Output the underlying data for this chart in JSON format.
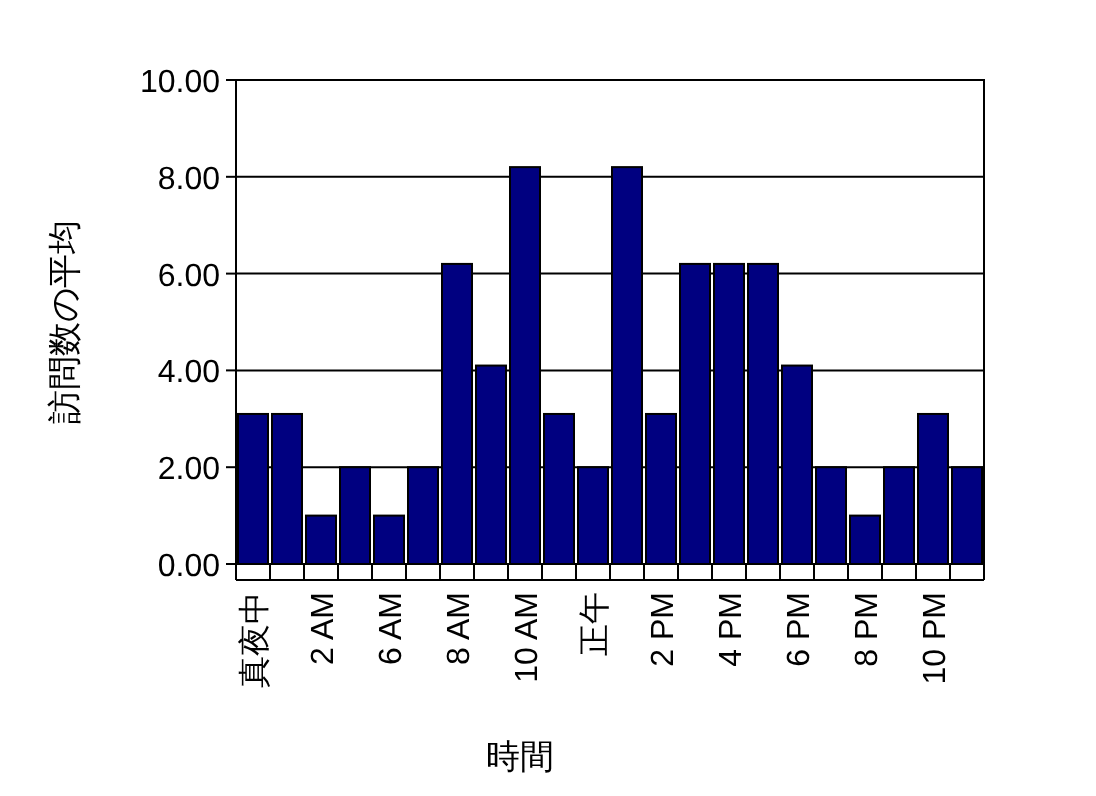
{
  "chart_data": {
    "type": "bar",
    "xlabel": "時間",
    "ylabel": "訪問数の平均",
    "categories": [
      "真夜中",
      null,
      "2 AM",
      null,
      "6 AM",
      null,
      "8 AM",
      null,
      "10 AM",
      null,
      "正午",
      null,
      "2 PM",
      null,
      "4 PM",
      null,
      "6 PM",
      null,
      "8 PM",
      null,
      "10 PM",
      null
    ],
    "values": [
      3.1,
      3.1,
      1.0,
      2.0,
      1.0,
      2.0,
      6.2,
      4.1,
      8.2,
      3.1,
      2.0,
      8.2,
      3.1,
      6.2,
      6.2,
      6.2,
      4.1,
      2.0,
      1.0,
      2.0,
      3.1,
      2.0
    ],
    "color": "#000080",
    "ylim": [
      0,
      10
    ],
    "yticks": [
      {
        "value": 0,
        "label": "0.00"
      },
      {
        "value": 2,
        "label": "2.00"
      },
      {
        "value": 4,
        "label": "4.00"
      },
      {
        "value": 6,
        "label": "6.00"
      },
      {
        "value": 8,
        "label": "8.00"
      },
      {
        "value": 10,
        "label": "10.00"
      }
    ],
    "grid": "y"
  }
}
